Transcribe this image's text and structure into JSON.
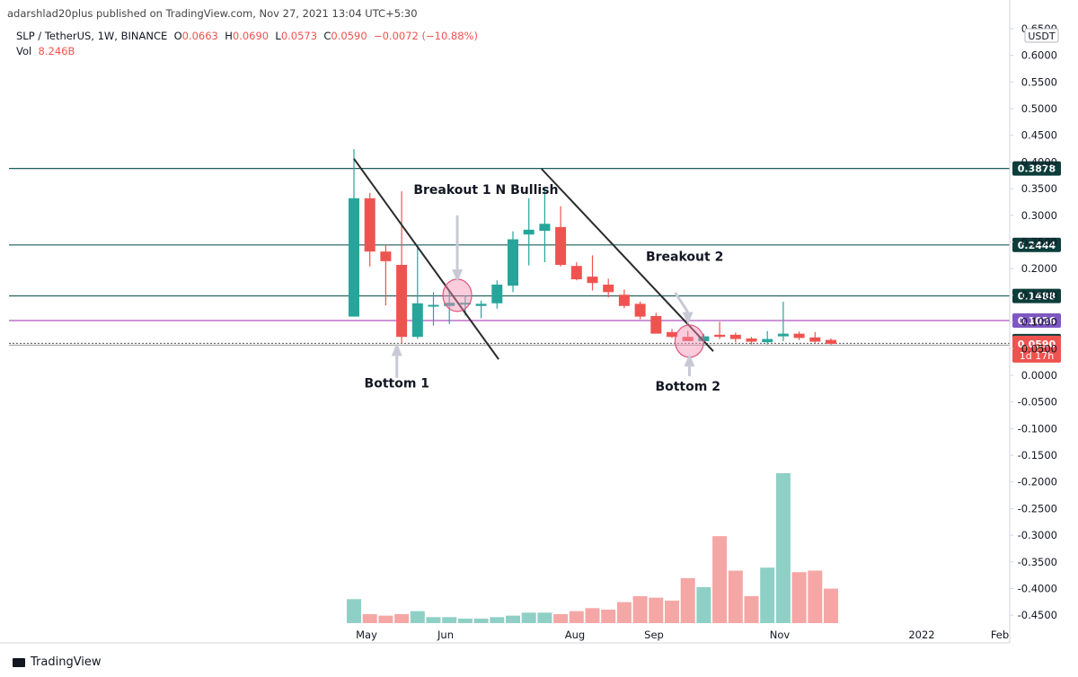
{
  "header": {
    "published": "adarshlad20plus published on TradingView.com, Nov 27, 2021 13:04 UTC+5:30",
    "symbol": "SLP / TetherUS, 1W, BINANCE",
    "o_label": "O",
    "o_value": "0.0663",
    "h_label": "H",
    "h_value": "0.0690",
    "l_label": "L",
    "l_value": "0.0573",
    "c_label": "C",
    "c_value": "0.0590",
    "change": "−0.0072 (−10.88%)",
    "vol_label": "Vol",
    "vol_value": "8.246B"
  },
  "currency_badge": "USDT",
  "footer": {
    "brand": "TradingView"
  },
  "colors": {
    "up": "#26a69a",
    "down": "#ef5350",
    "vol_up": "#8fd0c6",
    "vol_down": "#f4a7a5",
    "hline": "#1d5b5b",
    "purple_line": "#9c27b0",
    "trendline": "#2b2b2b"
  },
  "chart_data": {
    "type": "candlestick",
    "ylim": [
      -0.48,
      0.66
    ],
    "y_ticks": [
      "0.6500",
      "0.6000",
      "0.5500",
      "0.5000",
      "0.4500",
      "0.4000",
      "0.3500",
      "0.3000",
      "0.2500",
      "0.2000",
      "0.1500",
      "0.1000",
      "0.0500",
      "0.0000",
      "-0.0500",
      "-0.1000",
      "-0.1500",
      "-0.2000",
      "-0.2500",
      "-0.3000",
      "-0.3500",
      "-0.4000",
      "-0.4500"
    ],
    "x_ticks": [
      "May",
      "Jun",
      "Aug",
      "Sep",
      "Nov",
      "2022",
      "Feb"
    ],
    "candles": [
      {
        "o": 0.11,
        "h": 0.424,
        "l": 0.11,
        "c": 0.332
      },
      {
        "o": 0.332,
        "h": 0.342,
        "l": 0.204,
        "c": 0.232
      },
      {
        "o": 0.232,
        "h": 0.245,
        "l": 0.131,
        "c": 0.214
      },
      {
        "o": 0.207,
        "h": 0.345,
        "l": 0.06,
        "c": 0.072
      },
      {
        "o": 0.072,
        "h": 0.245,
        "l": 0.068,
        "c": 0.135
      },
      {
        "o": 0.13,
        "h": 0.156,
        "l": 0.093,
        "c": 0.132
      },
      {
        "o": 0.13,
        "h": 0.16,
        "l": 0.096,
        "c": 0.136
      },
      {
        "o": 0.134,
        "h": 0.15,
        "l": 0.112,
        "c": 0.136
      },
      {
        "o": 0.13,
        "h": 0.14,
        "l": 0.107,
        "c": 0.134
      },
      {
        "o": 0.135,
        "h": 0.178,
        "l": 0.125,
        "c": 0.17
      },
      {
        "o": 0.168,
        "h": 0.27,
        "l": 0.156,
        "c": 0.255
      },
      {
        "o": 0.264,
        "h": 0.332,
        "l": 0.206,
        "c": 0.273
      },
      {
        "o": 0.271,
        "h": 0.35,
        "l": 0.212,
        "c": 0.284
      },
      {
        "o": 0.278,
        "h": 0.317,
        "l": 0.204,
        "c": 0.207
      },
      {
        "o": 0.205,
        "h": 0.212,
        "l": 0.178,
        "c": 0.18
      },
      {
        "o": 0.185,
        "h": 0.225,
        "l": 0.159,
        "c": 0.173
      },
      {
        "o": 0.17,
        "h": 0.181,
        "l": 0.146,
        "c": 0.156
      },
      {
        "o": 0.151,
        "h": 0.161,
        "l": 0.126,
        "c": 0.13
      },
      {
        "o": 0.134,
        "h": 0.138,
        "l": 0.105,
        "c": 0.11
      },
      {
        "o": 0.111,
        "h": 0.117,
        "l": 0.08,
        "c": 0.078
      },
      {
        "o": 0.081,
        "h": 0.087,
        "l": 0.07,
        "c": 0.072
      },
      {
        "o": 0.072,
        "h": 0.083,
        "l": 0.066,
        "c": 0.064
      },
      {
        "o": 0.064,
        "h": 0.078,
        "l": 0.06,
        "c": 0.073
      },
      {
        "o": 0.076,
        "h": 0.1,
        "l": 0.068,
        "c": 0.072
      },
      {
        "o": 0.076,
        "h": 0.08,
        "l": 0.062,
        "c": 0.068
      },
      {
        "o": 0.069,
        "h": 0.072,
        "l": 0.058,
        "c": 0.063
      },
      {
        "o": 0.062,
        "h": 0.083,
        "l": 0.058,
        "c": 0.068
      },
      {
        "o": 0.073,
        "h": 0.138,
        "l": 0.064,
        "c": 0.078
      },
      {
        "o": 0.078,
        "h": 0.082,
        "l": 0.066,
        "c": 0.07
      },
      {
        "o": 0.071,
        "h": 0.081,
        "l": 0.061,
        "c": 0.063
      },
      {
        "o": 0.0663,
        "h": 0.069,
        "l": 0.0573,
        "c": 0.059
      }
    ],
    "volume_scale_max": 1.0,
    "volume": [
      0.16,
      0.06,
      0.05,
      0.06,
      0.08,
      0.04,
      0.04,
      0.03,
      0.03,
      0.04,
      0.05,
      0.07,
      0.07,
      0.06,
      0.08,
      0.1,
      0.09,
      0.14,
      0.18,
      0.17,
      0.15,
      0.3,
      0.24,
      0.58,
      0.35,
      0.18,
      0.37,
      1.0,
      0.34,
      0.35,
      0.23
    ],
    "horizontal_levels": [
      {
        "value": 0.3878,
        "label": "0.3878"
      },
      {
        "value": 0.2444,
        "label": "0.2444"
      },
      {
        "value": 0.1488,
        "label": "0.1488"
      }
    ],
    "purple_level": {
      "value": 0.1026,
      "label": "0.1026"
    },
    "price_tags": [
      {
        "label": "0.0641",
        "value": 0.0641
      },
      {
        "label": "0.0590",
        "value": 0.059,
        "countdown": "1d 17h"
      }
    ],
    "dotted_level": 0.06,
    "trendlines": [
      {
        "from": {
          "i": 0,
          "v": 0.406
        },
        "to": {
          "i": 9.1,
          "v": 0.03
        }
      },
      {
        "from": {
          "i": 11.8,
          "v": 0.387
        },
        "to": {
          "i": 22.6,
          "v": 0.045
        }
      }
    ],
    "annotations": [
      {
        "text": "Breakout 1 N Bullish",
        "i": 8.3,
        "v": 0.34
      },
      {
        "text": "Breakout 2",
        "i": 20.8,
        "v": 0.215
      },
      {
        "text": "Bottom 1",
        "i": 2.7,
        "v": -0.023
      },
      {
        "text": "Bottom 2",
        "i": 21.0,
        "v": -0.029
      }
    ],
    "circles": [
      {
        "i": 6.5,
        "v": 0.15
      },
      {
        "i": 21.1,
        "v": 0.064
      }
    ]
  }
}
